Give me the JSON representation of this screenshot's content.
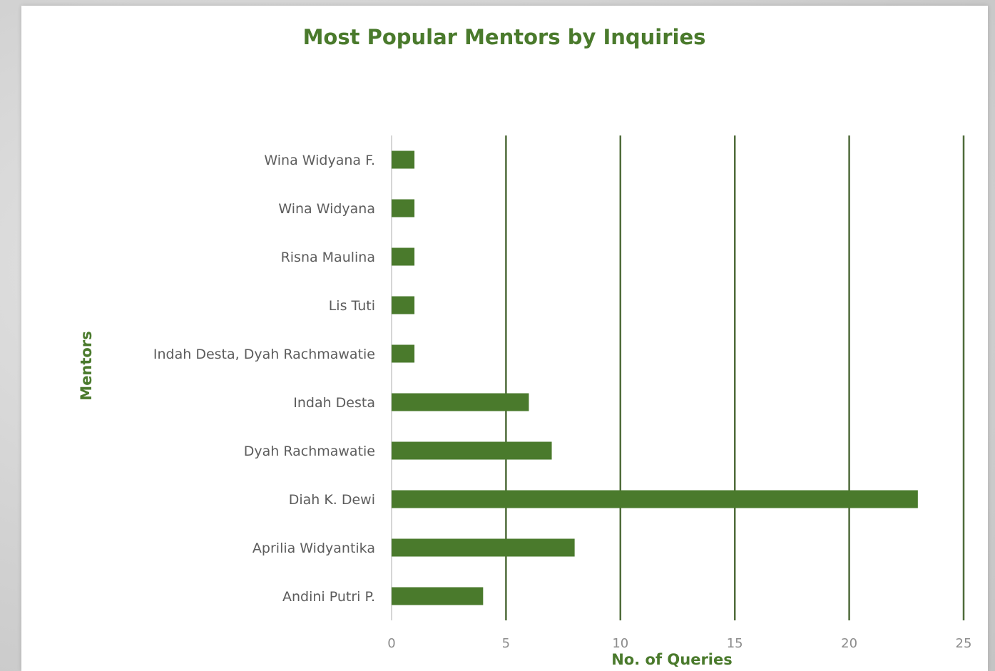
{
  "chart_data": {
    "type": "bar",
    "orientation": "horizontal",
    "title": "Most Popular Mentors by Inquiries",
    "xlabel": "No. of Queries",
    "ylabel": "Mentors",
    "categories": [
      "Wina Widyana F.",
      "Wina Widyana",
      "Risna Maulina",
      "Lis Tuti",
      "Indah Desta, Dyah Rachmawatie",
      "Indah Desta",
      "Dyah Rachmawatie",
      "Diah K. Dewi",
      "Aprilia Widyantika",
      "Andini Putri P."
    ],
    "values": [
      1,
      1,
      1,
      1,
      1,
      6,
      7,
      23,
      8,
      4
    ],
    "xlim": [
      0,
      25
    ],
    "xticks": [
      0,
      5,
      10,
      15,
      20,
      25
    ],
    "grid": "vertical",
    "legend": "none",
    "colors": {
      "bar": "#4a7a2c",
      "title": "#4a7a2c",
      "gridline": "#4f6b3a",
      "label": "#5c5c5c",
      "tick": "#8c8c8c"
    }
  }
}
